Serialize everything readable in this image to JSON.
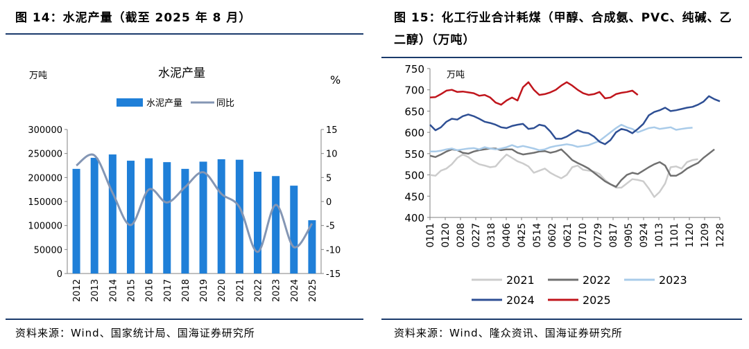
{
  "left": {
    "figure_title": "图 14：水泥产量（截至 2025 年 8 月）",
    "source": "资料来源：Wind、国家统计局、国海证券研究所"
  },
  "right": {
    "figure_title": "图 15：化工行业合计耗煤（甲醇、合成氨、PVC、纯碱、乙二醇）（万吨）",
    "source": "资料来源：Wind、隆众资讯、国海证券研究所"
  },
  "colors": {
    "bar": "#1f7fd8",
    "yoy": "#8496b4",
    "s2021": "#cccccc",
    "s2022": "#707070",
    "s2023": "#a9cbe9",
    "s2024": "#2e4f94",
    "s2025": "#c0151c",
    "rule": "#1a3a6b"
  },
  "chart_data": [
    {
      "type": "bar",
      "title": "水泥产量",
      "ylabel": "万吨",
      "y2label": "%",
      "categories": [
        "2012",
        "2013",
        "2014",
        "2015",
        "2016",
        "2017",
        "2018",
        "2019",
        "2020",
        "2021",
        "2022",
        "2023",
        "2024",
        "2025"
      ],
      "ylim": [
        0,
        300000
      ],
      "yticks": [
        0,
        50000,
        100000,
        150000,
        200000,
        250000,
        300000
      ],
      "ytick_labels": [
        "0",
        "50000",
        "100000",
        "150000",
        "200000",
        "250000",
        "300000"
      ],
      "y2lim": [
        -15,
        15
      ],
      "y2ticks": [
        -15,
        -10,
        -5,
        0,
        5,
        10,
        15
      ],
      "y2tick_labels": [
        "-15",
        "-10",
        "-5",
        "0",
        "5",
        "10",
        "15"
      ],
      "legend": [
        "水泥产量",
        "同比"
      ],
      "series": [
        {
          "name": "水泥产量",
          "type": "bar",
          "axis": "left",
          "values": [
            218000,
            241000,
            248000,
            235000,
            240000,
            232000,
            218000,
            233000,
            238000,
            237000,
            212000,
            203000,
            183000,
            111000
          ]
        },
        {
          "name": "同比",
          "type": "line",
          "axis": "right",
          "values": [
            7.5,
            9.6,
            1.8,
            -4.9,
            2.5,
            -0.2,
            3.0,
            6.1,
            1.6,
            -1.2,
            -10.5,
            -0.7,
            -9.5,
            -4.6
          ]
        }
      ]
    },
    {
      "type": "line",
      "ylabel": "万吨",
      "ylim": [
        400,
        750
      ],
      "yticks": [
        400,
        450,
        500,
        550,
        600,
        650,
        700,
        750
      ],
      "ytick_labels": [
        "400",
        "450",
        "500",
        "550",
        "600",
        "650",
        "700",
        "750"
      ],
      "x_labels": [
        "0101",
        "0120",
        "0208",
        "0227",
        "0318",
        "0406",
        "0425",
        "0514",
        "0602",
        "0621",
        "0710",
        "0729",
        "0817",
        "0905",
        "0924",
        "1013",
        "1101",
        "1120",
        "1209",
        "1228"
      ],
      "legend": [
        "2021",
        "2022",
        "2023",
        "2024",
        "2025"
      ],
      "series": [
        {
          "name": "2021",
          "values": [
            500,
            498,
            510,
            515,
            525,
            540,
            548,
            542,
            532,
            525,
            522,
            518,
            520,
            535,
            548,
            540,
            532,
            527,
            520,
            505,
            510,
            515,
            505,
            498,
            492,
            500,
            518,
            522,
            512,
            510,
            508,
            502,
            488,
            478,
            470,
            470,
            480,
            490,
            488,
            485,
            468,
            448,
            460,
            480,
            518,
            520,
            515,
            530,
            535,
            537
          ]
        },
        {
          "name": "2022",
          "values": [
            545,
            542,
            548,
            555,
            560,
            558,
            552,
            550,
            555,
            558,
            560,
            562,
            562,
            558,
            560,
            560,
            552,
            548,
            550,
            552,
            555,
            556,
            552,
            555,
            560,
            548,
            535,
            528,
            522,
            515,
            505,
            495,
            485,
            478,
            472,
            488,
            500,
            505,
            502,
            510,
            518,
            525,
            530,
            522,
            498,
            498,
            505,
            515,
            522,
            528,
            540,
            550,
            560
          ]
        },
        {
          "name": "2023",
          "values": [
            555,
            555,
            557,
            560,
            562,
            558,
            560,
            562,
            563,
            560,
            565,
            562,
            560,
            562,
            565,
            570,
            565,
            568,
            565,
            562,
            558,
            560,
            565,
            568,
            570,
            572,
            570,
            566,
            568,
            570,
            575,
            580,
            590,
            600,
            610,
            618,
            612,
            608,
            600,
            605,
            610,
            612,
            608,
            610,
            612,
            606,
            608,
            610,
            611
          ]
        },
        {
          "name": "2024",
          "values": [
            618,
            605,
            612,
            625,
            632,
            630,
            638,
            642,
            638,
            632,
            625,
            622,
            618,
            612,
            610,
            615,
            618,
            620,
            608,
            610,
            618,
            615,
            602,
            585,
            585,
            590,
            598,
            605,
            600,
            598,
            590,
            578,
            572,
            582,
            600,
            608,
            605,
            598,
            608,
            620,
            640,
            648,
            652,
            658,
            650,
            652,
            655,
            658,
            660,
            665,
            672,
            685,
            678,
            673
          ]
        },
        {
          "name": "2025",
          "values": [
            682,
            683,
            690,
            698,
            700,
            695,
            696,
            694,
            692,
            686,
            688,
            682,
            670,
            665,
            675,
            682,
            675,
            706,
            718,
            700,
            688,
            690,
            694,
            700,
            710,
            718,
            710,
            700,
            692,
            688,
            690,
            695,
            680,
            682,
            690,
            693,
            695,
            698,
            688
          ]
        }
      ]
    }
  ]
}
